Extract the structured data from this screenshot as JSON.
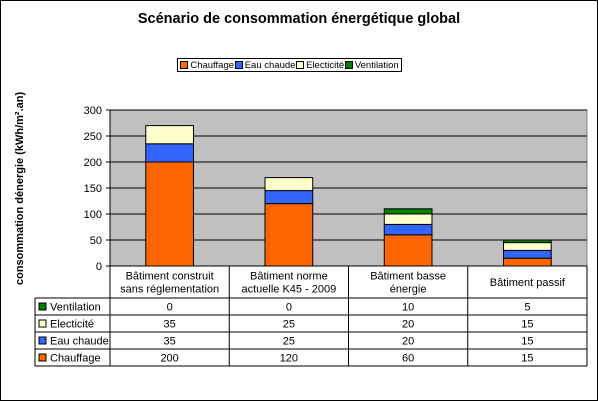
{
  "chart_data": {
    "type": "bar",
    "stacked": true,
    "title": "Scénario de consommation énergétique global",
    "ylabel": "consommation dénergie (kWh/m².an)",
    "xlabel": "",
    "ylim": [
      0,
      300
    ],
    "yticks": [
      "0",
      "50",
      "100",
      "150",
      "200",
      "250",
      "300"
    ],
    "grid": true,
    "legend_position": "top",
    "plot_background": "#c0c0c0",
    "categories": [
      [
        "Bâtiment construit",
        "sans réglementation"
      ],
      [
        "Bâtiment norme",
        "actuelle K45 - 2009"
      ],
      [
        "Bâtiment basse",
        "énergie"
      ],
      [
        "Bâtiment passif"
      ]
    ],
    "series": [
      {
        "name": "Chauffage",
        "color": "#ff6600",
        "values": [
          200,
          120,
          60,
          15
        ]
      },
      {
        "name": "Eau chaude",
        "color": "#3366ff",
        "values": [
          35,
          25,
          20,
          15
        ]
      },
      {
        "name": "Electicité",
        "color": "#ffffcc",
        "values": [
          35,
          25,
          20,
          15
        ]
      },
      {
        "name": "Ventilation",
        "color": "#008000",
        "values": [
          0,
          0,
          10,
          5
        ]
      }
    ],
    "table_rows": [
      "Ventilation",
      "Electicité",
      "Eau chaude",
      "Chauffage"
    ],
    "table_values": {
      "Ventilation": [
        "0",
        "0",
        "10",
        "5"
      ],
      "Electicité": [
        "35",
        "25",
        "20",
        "15"
      ],
      "Eau chaude": [
        "35",
        "25",
        "20",
        "15"
      ],
      "Chauffage": [
        "200",
        "120",
        "60",
        "15"
      ]
    }
  }
}
